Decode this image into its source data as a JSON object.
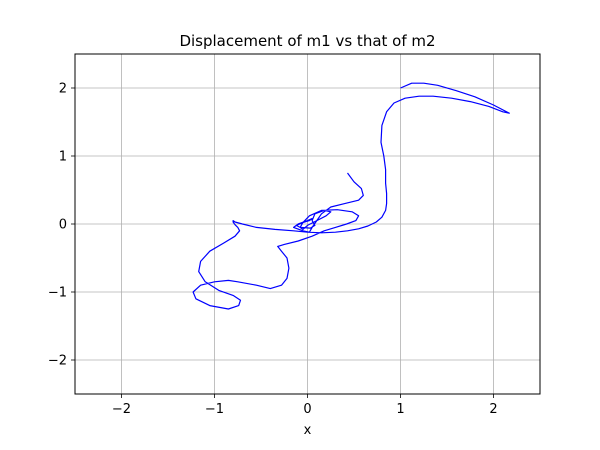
{
  "chart_data": {
    "type": "line",
    "title": "Displacement of m1 vs that of m2",
    "xlabel": "x",
    "ylabel": "",
    "xlim": [
      -2.5,
      2.5
    ],
    "ylim": [
      -2.5,
      2.5
    ],
    "xticks": [
      -2,
      -1,
      0,
      1,
      2
    ],
    "yticks": [
      -2,
      -1,
      0,
      1,
      2
    ],
    "xtick_labels": [
      "−2",
      "−1",
      "0",
      "1",
      "2"
    ],
    "ytick_labels": [
      "−2",
      "−1",
      "0",
      "1",
      "2"
    ],
    "grid": true,
    "colors": {
      "series": "#0000ff",
      "grid": "#b0b0b0",
      "axes": "#000000"
    },
    "series": [
      {
        "x": [
          1.0,
          1.12,
          1.25,
          1.4,
          1.6,
          1.8,
          2.0,
          2.17,
          2.1,
          1.95,
          1.75,
          1.55,
          1.35,
          1.2,
          1.05,
          0.93,
          0.85,
          0.8,
          0.79,
          0.82,
          0.84,
          0.84,
          0.85,
          0.85,
          0.84,
          0.8,
          0.74,
          0.65,
          0.55,
          0.43,
          0.3,
          0.15,
          0.0,
          -0.15,
          -0.35,
          -0.55,
          -0.7,
          -0.78,
          -0.8,
          -0.8,
          -0.78,
          -0.75,
          -0.73,
          -0.78,
          -0.9,
          -1.05,
          -1.15,
          -1.17,
          -1.1,
          -0.95,
          -0.8,
          -0.72,
          -0.74,
          -0.85,
          -1.05,
          -1.2,
          -1.23,
          -1.15,
          -1.0,
          -0.85,
          -0.75,
          -0.55,
          -0.4,
          -0.28,
          -0.22,
          -0.2,
          -0.22,
          -0.28,
          -0.32,
          -0.25,
          -0.1,
          0.05,
          0.18,
          0.3,
          0.42,
          0.52,
          0.55,
          0.48,
          0.32,
          0.15,
          0.02,
          -0.05,
          -0.08,
          -0.05,
          0.0,
          0.1,
          0.2,
          0.25,
          0.18,
          0.08,
          0.05,
          0.08,
          0.03,
          -0.08,
          -0.12,
          -0.05,
          0.02,
          0.05,
          0.0,
          -0.1,
          -0.15,
          -0.05,
          0.02,
          0.05,
          0.1,
          0.15,
          0.25,
          0.4,
          0.55,
          0.6,
          0.58,
          0.5,
          0.43
        ],
        "y": [
          2.0,
          2.07,
          2.07,
          2.04,
          1.96,
          1.87,
          1.75,
          1.63,
          1.65,
          1.73,
          1.8,
          1.85,
          1.88,
          1.88,
          1.85,
          1.78,
          1.65,
          1.45,
          1.2,
          1.0,
          0.8,
          0.6,
          0.45,
          0.3,
          0.2,
          0.1,
          0.03,
          -0.03,
          -0.07,
          -0.1,
          -0.12,
          -0.13,
          -0.12,
          -0.1,
          -0.08,
          -0.05,
          0.0,
          0.03,
          0.05,
          0.03,
          -0.01,
          -0.05,
          -0.1,
          -0.18,
          -0.28,
          -0.4,
          -0.55,
          -0.7,
          -0.85,
          -0.98,
          -1.05,
          -1.12,
          -1.2,
          -1.25,
          -1.2,
          -1.1,
          -1.0,
          -0.9,
          -0.85,
          -0.83,
          -0.85,
          -0.9,
          -0.95,
          -0.9,
          -0.8,
          -0.65,
          -0.5,
          -0.4,
          -0.33,
          -0.3,
          -0.25,
          -0.18,
          -0.1,
          -0.05,
          0.0,
          0.05,
          0.12,
          0.18,
          0.21,
          0.2,
          0.12,
          0.02,
          -0.05,
          -0.08,
          -0.02,
          0.05,
          0.12,
          0.18,
          0.2,
          0.15,
          0.05,
          -0.02,
          -0.06,
          -0.05,
          -0.02,
          0.02,
          0.05,
          0.08,
          0.05,
          0.0,
          -0.05,
          -0.1,
          -0.12,
          -0.05,
          0.05,
          0.15,
          0.25,
          0.3,
          0.35,
          0.42,
          0.52,
          0.62,
          0.75
        ]
      }
    ]
  }
}
